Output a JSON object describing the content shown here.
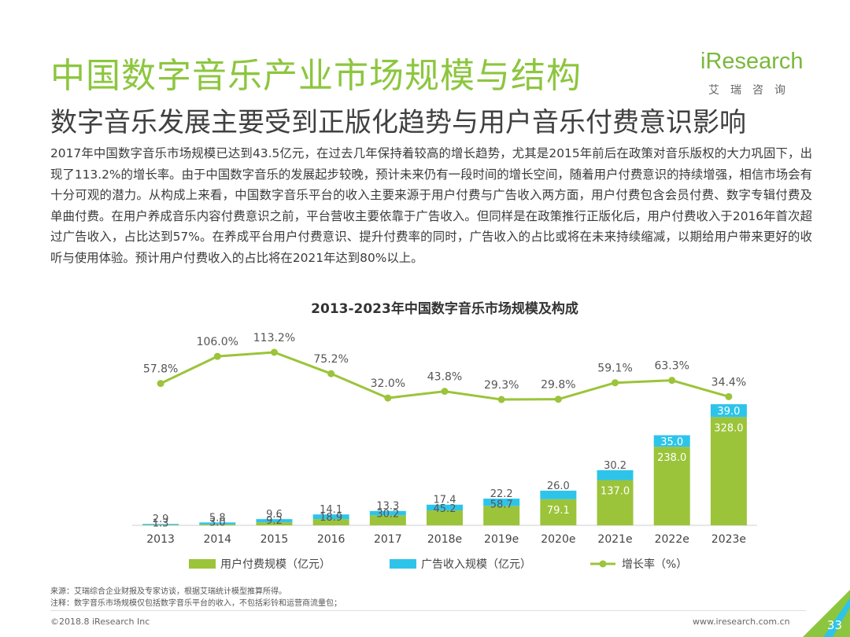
{
  "header": {
    "title": "中国数字音乐产业市场规模与结构",
    "subtitle": "数字音乐发展主要受到正版化趋势与用户音乐付费意识影响"
  },
  "logo": {
    "word": "iResearch",
    "sub": "艾瑞咨询"
  },
  "body_text": "2017年中国数字音乐市场规模已达到43.5亿元，在过去几年保持着较高的增长趋势，尤其是2015年前后在政策对音乐版权的大力巩固下，出现了113.2%的增长率。由于中国数字音乐的发展起步较晚，预计未来仍有一段时间的增长空间，随着用户付费意识的持续增强，相信市场会有十分可观的潜力。从构成上来看，中国数字音乐平台的收入主要来源于用户付费与广告收入两方面，用户付费包含会员付费、数字专辑付费及单曲付费。在用户养成音乐内容付费意识之前，平台营收主要依靠于广告收入。但同样是在政策推行正版化后，用户付费收入于2016年首次超过广告收入，占比达到57%。在养成平台用户付费意识、提升付费率的同时，广告收入的占比或将在未来持续缩减，以期给用户带来更好的收听与使用体验。预计用户付费收入的占比将在2021年达到80%以上。",
  "chart_data": {
    "type": "bar",
    "stacked": true,
    "title": "2013-2023年中国数字音乐市场规模及构成",
    "categories": [
      "2013",
      "2014",
      "2015",
      "2016",
      "2017",
      "2018e",
      "2019e",
      "2020e",
      "2021e",
      "2022e",
      "2023e"
    ],
    "series": [
      {
        "name": "用户付费规模（亿元）",
        "type": "bar",
        "color": "#9bc43a",
        "values": [
          1.3,
          3.0,
          9.2,
          18.9,
          30.2,
          45.2,
          58.7,
          79.1,
          137.0,
          238.0,
          328.0
        ],
        "labels": [
          "1.3",
          "3.0",
          "9.2",
          "18.9",
          "30.2",
          "45.2",
          "58.7",
          "79.1",
          "137.0",
          "238.0",
          "328.0"
        ]
      },
      {
        "name": "广告收入规模（亿元）",
        "type": "bar",
        "color": "#2ec4ea",
        "values": [
          2.9,
          5.8,
          9.6,
          14.1,
          13.3,
          17.4,
          22.2,
          26.0,
          30.2,
          35.0,
          39.0
        ],
        "labels": [
          "2.9",
          "5.8",
          "9.6",
          "14.1",
          "13.3",
          "17.4",
          "22.2",
          "26.0",
          "30.2",
          "35.0",
          "39.0"
        ]
      },
      {
        "name": "增长率（%）",
        "type": "line",
        "color": "#9bc43a",
        "values": [
          57.8,
          106.0,
          113.2,
          75.2,
          32.0,
          43.8,
          29.3,
          29.8,
          59.1,
          63.3,
          34.4
        ],
        "labels": [
          "57.8%",
          "106.0%",
          "113.2%",
          "75.2%",
          "32.0%",
          "43.8%",
          "29.3%",
          "29.8%",
          "59.1%",
          "63.3%",
          "34.4%"
        ]
      }
    ],
    "bar_ylim": [
      0,
      367
    ],
    "line_ylim": [
      29.3,
      113.2
    ],
    "legend_position": "bottom"
  },
  "notes": {
    "source": "来源：艾瑞综合企业财报及专家访谈，根据艾瑞统计模型推算所得。",
    "note": "注释：数字音乐市场规模仅包括数字音乐平台的收入，不包括彩铃和运营商流量包；"
  },
  "footer": {
    "copyright": "©2018.8 iResearch Inc",
    "website": "www.iresearch.com.cn",
    "page_number": "33"
  },
  "colors": {
    "accent": "#8cc63e",
    "bar_user": "#9bc43a",
    "bar_ad": "#2ec4ea",
    "line": "#9bc43a"
  }
}
